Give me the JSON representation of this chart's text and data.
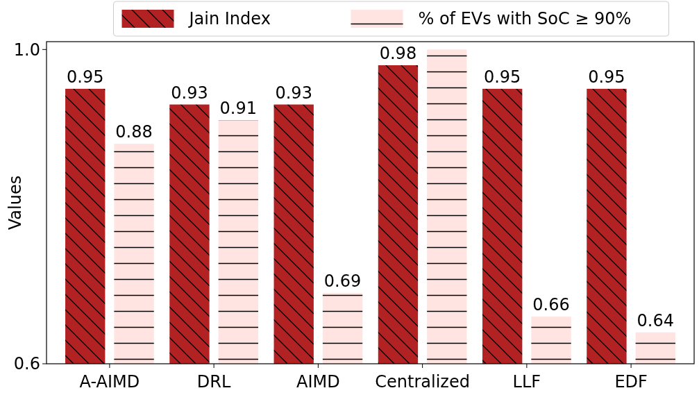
{
  "chart_data": {
    "type": "bar",
    "ylabel": "Values",
    "categories": [
      "A-AIMD",
      "DRL",
      "AIMD",
      "Centralized",
      "LLF",
      "EDF"
    ],
    "series": [
      {
        "name": "Jain Index",
        "color": "#b22222",
        "values": [
          0.95,
          0.93,
          0.93,
          0.98,
          0.95,
          0.95
        ],
        "value_labels": [
          "0.95",
          "0.93",
          "0.93",
          "0.98",
          "0.95",
          "0.95"
        ]
      },
      {
        "name": "% of EVs with SoC ≥ 90%",
        "color": "#ffe4e1",
        "values": [
          0.88,
          0.91,
          0.69,
          1.0,
          0.66,
          0.64
        ],
        "value_labels": [
          "0.88",
          "0.91",
          "0.69",
          null,
          "0.66",
          "0.64"
        ]
      }
    ],
    "ylim": [
      0.6,
      1.01
    ],
    "yticks": [
      0.6,
      {
        "value": 1.0,
        "label": "1.0"
      }
    ],
    "grid": false,
    "legend": "top"
  }
}
